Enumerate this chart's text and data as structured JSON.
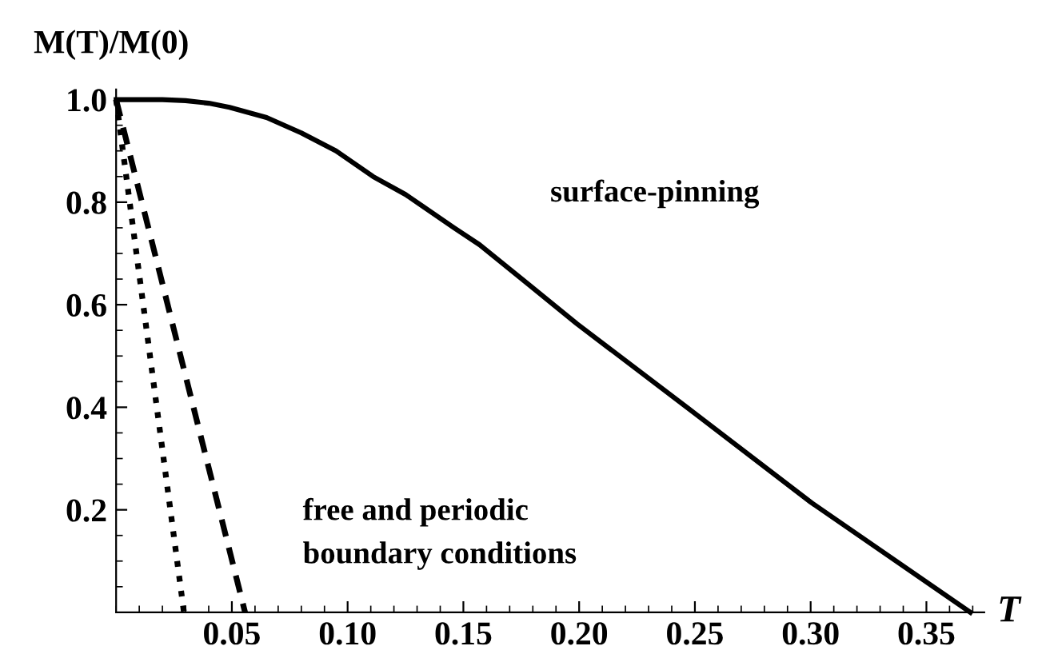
{
  "chart_data": {
    "type": "line",
    "xlabel": "T",
    "ylabel": "M(T)/M(0)",
    "series": [
      {
        "color": "#000000",
        "line_style": "solid",
        "x": [
          0,
          0.01,
          0.02,
          0.03,
          0.04,
          0.049,
          0.065,
          0.08,
          0.095,
          0.111,
          0.125,
          0.146,
          0.157,
          0.178,
          0.199,
          0.25,
          0.3,
          0.369
        ],
        "values": [
          1.0,
          1.0,
          1.0,
          0.998,
          0.993,
          0.985,
          0.965,
          0.935,
          0.9,
          0.85,
          0.815,
          0.75,
          0.717,
          0.64,
          0.563,
          0.388,
          0.215,
          0
        ]
      },
      {
        "color": "#000000",
        "line_style": "dotted",
        "x": [
          0,
          0.0293
        ],
        "values": [
          1.0,
          0
        ]
      },
      {
        "color": "#000000",
        "line_style": "dashed",
        "x": [
          0,
          0.0557
        ],
        "values": [
          1.0,
          0
        ]
      }
    ],
    "annotations": [
      "surface-pinning",
      "free and periodic\nboundary conditions"
    ],
    "xlim": [
      0,
      0.375
    ],
    "ylim": [
      0,
      1.02
    ],
    "xticks": [
      {
        "value": 0.05,
        "label": "0.05"
      },
      {
        "value": 0.1,
        "label": "0.10"
      },
      {
        "value": 0.15,
        "label": "0.15"
      },
      {
        "value": 0.2,
        "label": "0.20"
      },
      {
        "value": 0.25,
        "label": "0.25"
      },
      {
        "value": 0.3,
        "label": "0.30"
      },
      {
        "value": 0.35,
        "label": "0.35"
      }
    ],
    "yticks": [
      0.2,
      0.4,
      0.6,
      0.8,
      {
        "value": 1.0,
        "label": "1.0"
      }
    ],
    "grid": false,
    "legend": false,
    "marker": "none"
  }
}
